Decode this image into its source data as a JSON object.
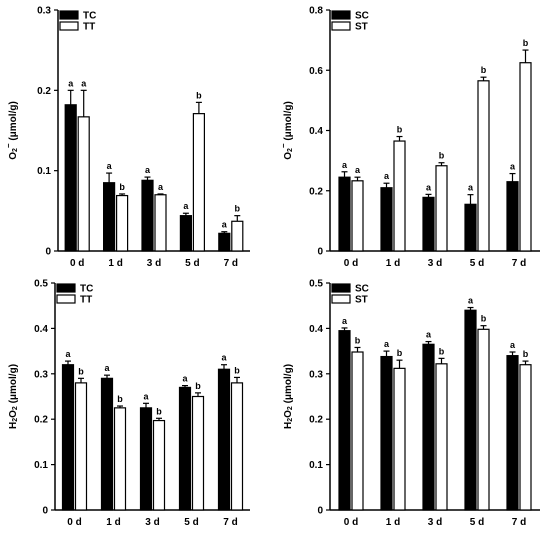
{
  "chart_data": [
    {
      "type": "bar",
      "categories": [
        "0 d",
        "1 d",
        "3 d",
        "5 d",
        "7 d"
      ],
      "ylabel": "O2⁻ (μmol/g)",
      "ylabel_main": "O",
      "ylabel_sub": "2",
      "ylabel_sup": "−",
      "ylabel_rest": " (μmol/g)",
      "ylim": [
        0,
        0.3
      ],
      "yticks": [
        "0",
        "0.1",
        "0.2",
        "0.3"
      ],
      "yticks_values": [
        0,
        0.1,
        0.2,
        0.3
      ],
      "legend_position": "top-left",
      "series": [
        {
          "name": "TC",
          "color": "#000000",
          "values": [
            0.182,
            0.085,
            0.088,
            0.044,
            0.022
          ],
          "errors": [
            0.018,
            0.012,
            0.004,
            0.003,
            0.002
          ],
          "letters": [
            "a",
            "a",
            "a",
            "a",
            "a"
          ]
        },
        {
          "name": "TT",
          "color": "#ffffff",
          "values": [
            0.167,
            0.069,
            0.07,
            0.171,
            0.037
          ],
          "errors": [
            0.033,
            0.002,
            0.001,
            0.014,
            0.007
          ],
          "letters": [
            "a",
            "b",
            "a",
            "b",
            "b"
          ]
        }
      ]
    },
    {
      "type": "bar",
      "categories": [
        "0 d",
        "1 d",
        "3 d",
        "5 d",
        "7 d"
      ],
      "ylabel": "O2⁻ (μmol/g)",
      "ylabel_main": "O",
      "ylabel_sub": "2",
      "ylabel_sup": "−",
      "ylabel_rest": " (μmol/g)",
      "ylim": [
        0,
        0.8
      ],
      "yticks": [
        "0",
        "0.2",
        "0.4",
        "0.6",
        "0.8"
      ],
      "yticks_values": [
        0,
        0.2,
        0.4,
        0.6,
        0.8
      ],
      "legend_position": "top-left",
      "series": [
        {
          "name": "SC",
          "color": "#000000",
          "values": [
            0.245,
            0.21,
            0.178,
            0.155,
            0.23
          ],
          "errors": [
            0.018,
            0.015,
            0.01,
            0.032,
            0.027
          ],
          "letters": [
            "a",
            "a",
            "a",
            "a",
            "a"
          ]
        },
        {
          "name": "ST",
          "color": "#ffffff",
          "values": [
            0.233,
            0.365,
            0.283,
            0.565,
            0.625
          ],
          "errors": [
            0.012,
            0.015,
            0.01,
            0.012,
            0.042
          ],
          "letters": [
            "a",
            "b",
            "b",
            "b",
            "b"
          ]
        }
      ]
    },
    {
      "type": "bar",
      "categories": [
        "0 d",
        "1 d",
        "3 d",
        "5 d",
        "7 d"
      ],
      "ylabel": "H2O2 (μmol/g)",
      "ylabel_main": "H",
      "ylabel_sub": "2",
      "ylabel_main2": "O",
      "ylabel_sub2": "2",
      "ylabel_rest": " (μmol/g)",
      "ylim": [
        0,
        0.5
      ],
      "yticks": [
        "0",
        "0.1",
        "0.2",
        "0.3",
        "0.4",
        "0.5"
      ],
      "yticks_values": [
        0,
        0.1,
        0.2,
        0.3,
        0.4,
        0.5
      ],
      "legend_position": "top-left",
      "series": [
        {
          "name": "TC",
          "color": "#000000",
          "values": [
            0.32,
            0.29,
            0.225,
            0.27,
            0.31
          ],
          "errors": [
            0.008,
            0.007,
            0.01,
            0.004,
            0.01
          ],
          "letters": [
            "a",
            "a",
            "a",
            "a",
            "a"
          ]
        },
        {
          "name": "TT",
          "color": "#ffffff",
          "values": [
            0.28,
            0.225,
            0.197,
            0.25,
            0.28
          ],
          "errors": [
            0.01,
            0.004,
            0.005,
            0.008,
            0.012
          ],
          "letters": [
            "b",
            "b",
            "b",
            "b",
            "b"
          ]
        }
      ]
    },
    {
      "type": "bar",
      "categories": [
        "0 d",
        "1 d",
        "3 d",
        "5 d",
        "7 d"
      ],
      "ylabel": "H2O2 (μmol/g)",
      "ylabel_main": "H",
      "ylabel_sub": "2",
      "ylabel_main2": "O",
      "ylabel_sub2": "2",
      "ylabel_rest": " (μmol/g)",
      "ylim": [
        0,
        0.5
      ],
      "yticks": [
        "0",
        "0.1",
        "0.2",
        "0.3",
        "0.4",
        "0.5"
      ],
      "yticks_values": [
        0,
        0.1,
        0.2,
        0.3,
        0.4,
        0.5
      ],
      "legend_position": "top-left",
      "series": [
        {
          "name": "SC",
          "color": "#000000",
          "values": [
            0.395,
            0.338,
            0.365,
            0.44,
            0.34
          ],
          "errors": [
            0.006,
            0.012,
            0.006,
            0.006,
            0.008
          ],
          "letters": [
            "a",
            "a",
            "a",
            "a",
            "a"
          ]
        },
        {
          "name": "ST",
          "color": "#ffffff",
          "values": [
            0.348,
            0.312,
            0.322,
            0.398,
            0.32
          ],
          "errors": [
            0.01,
            0.018,
            0.012,
            0.008,
            0.008
          ],
          "letters": [
            "b",
            "b",
            "b",
            "b",
            "b"
          ]
        }
      ]
    }
  ]
}
